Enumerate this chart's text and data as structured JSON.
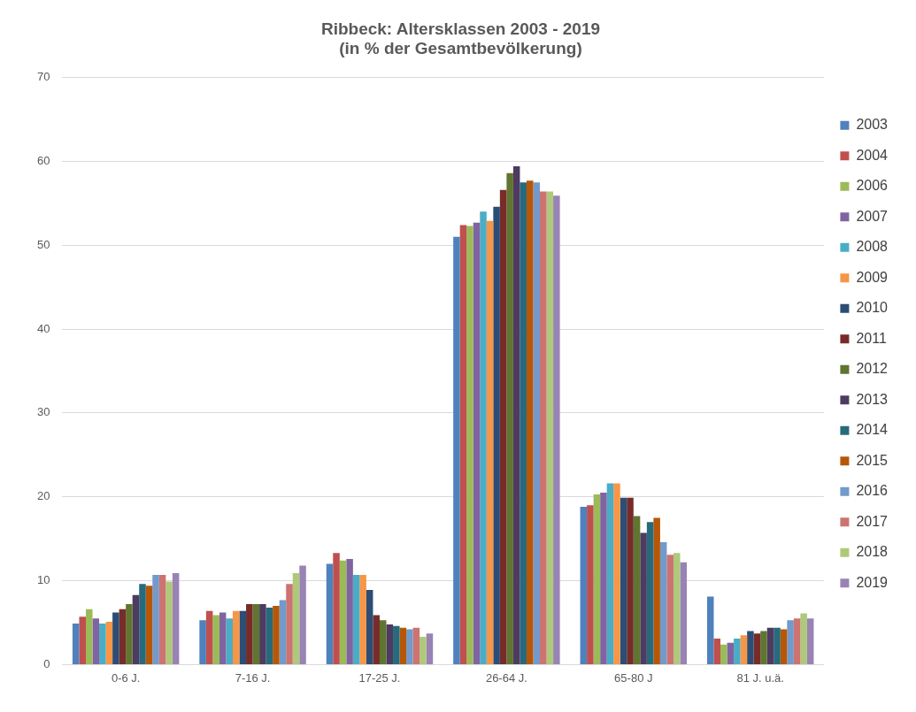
{
  "chart_data": {
    "type": "bar",
    "title": "Ribbeck: Altersklassen 2003 - 2019",
    "subtitle": "(in % der Gesamtbevölkerung)",
    "categories": [
      "0-6 J.",
      "7-16 J.",
      "17-25 J.",
      "26-64 J.",
      "65-80 J",
      "81 J. u.ä."
    ],
    "series": [
      {
        "name": "2003",
        "color": "#4f81bd",
        "values": [
          4.9,
          5.3,
          12.0,
          51.0,
          18.8,
          8.1
        ]
      },
      {
        "name": "2004",
        "color": "#c0504d",
        "values": [
          5.7,
          6.4,
          13.3,
          52.4,
          19.0,
          3.1
        ]
      },
      {
        "name": "2006",
        "color": "#9bbb59",
        "values": [
          6.6,
          5.9,
          12.4,
          52.3,
          20.3,
          2.4
        ]
      },
      {
        "name": "2007",
        "color": "#8064a2",
        "values": [
          5.5,
          6.2,
          12.6,
          52.7,
          20.5,
          2.6
        ]
      },
      {
        "name": "2008",
        "color": "#4bacc6",
        "values": [
          4.9,
          5.5,
          10.7,
          54.0,
          21.6,
          3.1
        ]
      },
      {
        "name": "2009",
        "color": "#f79646",
        "values": [
          5.1,
          6.4,
          10.7,
          52.9,
          21.6,
          3.5
        ]
      },
      {
        "name": "2010",
        "color": "#2c4d75",
        "values": [
          6.2,
          6.4,
          8.9,
          54.6,
          19.9,
          4.0
        ]
      },
      {
        "name": "2011",
        "color": "#772c2a",
        "values": [
          6.6,
          7.2,
          5.9,
          56.6,
          19.9,
          3.7
        ]
      },
      {
        "name": "2012",
        "color": "#5f7530",
        "values": [
          7.2,
          7.2,
          5.3,
          58.6,
          17.7,
          4.0
        ]
      },
      {
        "name": "2013",
        "color": "#4d3b62",
        "values": [
          8.3,
          7.2,
          4.8,
          59.4,
          15.7,
          4.4
        ]
      },
      {
        "name": "2014",
        "color": "#276a7c",
        "values": [
          9.6,
          6.8,
          4.6,
          57.5,
          17.0,
          4.4
        ]
      },
      {
        "name": "2015",
        "color": "#b65708",
        "values": [
          9.4,
          7.0,
          4.4,
          57.7,
          17.5,
          4.2
        ]
      },
      {
        "name": "2016",
        "color": "#729aca",
        "values": [
          10.7,
          7.7,
          4.2,
          57.5,
          14.6,
          5.3
        ]
      },
      {
        "name": "2017",
        "color": "#cd7371",
        "values": [
          10.7,
          9.6,
          4.4,
          56.4,
          13.1,
          5.5
        ]
      },
      {
        "name": "2018",
        "color": "#afc97a",
        "values": [
          9.9,
          10.9,
          3.3,
          56.4,
          13.3,
          6.1
        ]
      },
      {
        "name": "2019",
        "color": "#9983b5",
        "values": [
          10.9,
          11.8,
          3.7,
          55.9,
          12.2,
          5.5
        ]
      }
    ],
    "ylim": [
      0,
      70
    ],
    "yticks": [
      0,
      10,
      20,
      30,
      40,
      50,
      60,
      70
    ],
    "grid": "y",
    "legend": "right"
  }
}
